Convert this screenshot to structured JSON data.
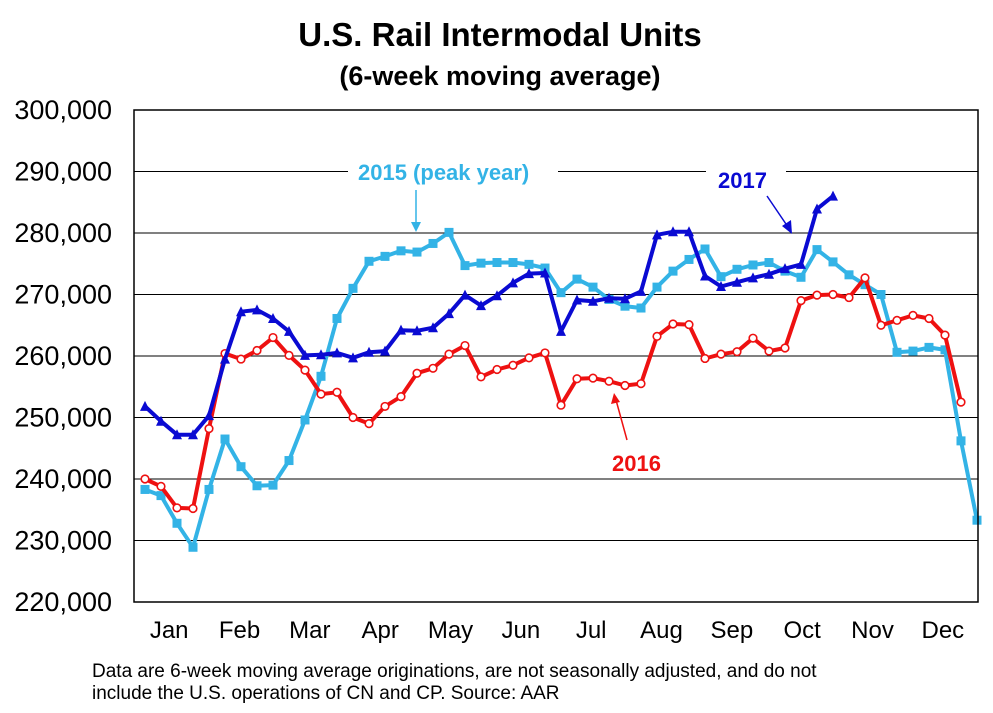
{
  "chart_data": {
    "type": "line",
    "title": "U.S. Rail Intermodal Units",
    "subtitle": "(6-week moving average)",
    "ylim": [
      220000,
      300000
    ],
    "ytick_labels": [
      "220,000",
      "230,000",
      "240,000",
      "250,000",
      "260,000",
      "270,000",
      "280,000",
      "290,000",
      "300,000"
    ],
    "ytick_values": [
      220000,
      230000,
      240000,
      250000,
      260000,
      270000,
      280000,
      290000,
      300000
    ],
    "x_weeks": 52,
    "month_labels": [
      "Jan",
      "Feb",
      "Mar",
      "Apr",
      "May",
      "Jun",
      "Jul",
      "Aug",
      "Sep",
      "Oct",
      "Nov",
      "Dec"
    ],
    "grid": true,
    "series": [
      {
        "name": "2015 (peak year)",
        "color": "#33B3E6",
        "marker": "square",
        "values": [
          238300,
          237300,
          232800,
          228900,
          238300,
          246500,
          242000,
          238900,
          239000,
          243000,
          249600,
          256700,
          266100,
          271000,
          275400,
          276200,
          277100,
          276900,
          278300,
          280100,
          274700,
          275100,
          275200,
          275200,
          274900,
          274300,
          270300,
          272500,
          271200,
          269200,
          268100,
          267800,
          271200,
          273800,
          275700,
          277400,
          272900,
          274100,
          274800,
          275200,
          273800,
          272800,
          277300,
          275300,
          273200,
          271600,
          270000,
          260600,
          260800,
          261400,
          261000,
          246200,
          233300
        ]
      },
      {
        "name": "2016",
        "color": "#EE1111",
        "marker": "circle",
        "values": [
          240000,
          238800,
          235300,
          235200,
          248200,
          260400,
          259500,
          260900,
          263000,
          260100,
          257700,
          253800,
          254100,
          250000,
          249000,
          251800,
          253400,
          257200,
          258000,
          260300,
          261700,
          256600,
          257800,
          258500,
          259700,
          260500,
          252000,
          256300,
          256400,
          255900,
          255200,
          255500,
          263200,
          265200,
          265100,
          259600,
          260300,
          260700,
          262900,
          260800,
          261300,
          269000,
          269900,
          270000,
          269500,
          272700,
          265000,
          265800,
          266600,
          266100,
          263400,
          252500
        ]
      },
      {
        "name": "2017",
        "color": "#0A0AD2",
        "marker": "triangle",
        "values": [
          251800,
          249400,
          247200,
          247200,
          250300,
          259500,
          267200,
          267500,
          266100,
          264000,
          260100,
          260200,
          260500,
          259700,
          260600,
          260800,
          264200,
          264100,
          264600,
          266900,
          269900,
          268200,
          269800,
          271900,
          273400,
          273500,
          264000,
          269100,
          268900,
          269400,
          269300,
          270500,
          279700,
          280200,
          280200,
          273000,
          271300,
          272000,
          272700,
          273300,
          274200,
          274900,
          283900,
          286000
        ]
      }
    ],
    "annotations": {
      "label_2015": "2015 (peak year)",
      "label_2016": "2016",
      "label_2017": "2017"
    },
    "footnote": [
      "Data are 6-week moving average originations, are not seasonally adjusted, and do not",
      "include the U.S. operations of CN and CP.   Source: AAR"
    ]
  }
}
